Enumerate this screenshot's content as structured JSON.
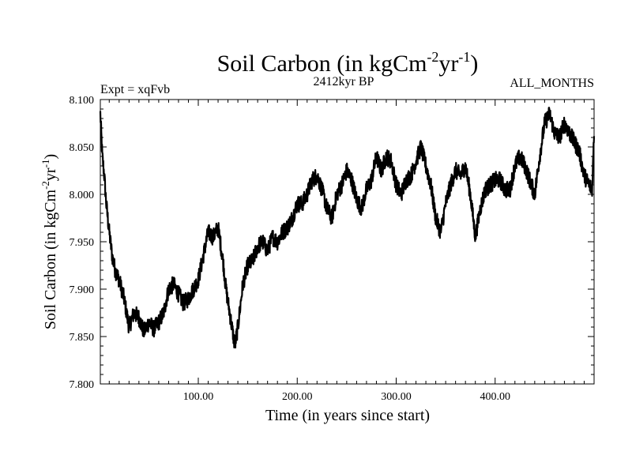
{
  "chart_data": {
    "type": "line",
    "title_main": "Soil Carbon (in kgCm",
    "title_sup1": "-2",
    "title_mid": "yr",
    "title_sup2": "-1",
    "title_end": ")",
    "subtitle_left": "Expt = xqFvb",
    "subtitle_center": "2412kyr BP",
    "subtitle_right": "ALL_MONTHS",
    "xlabel": "Time (in years since start)",
    "ylabel_main": "Soil Carbon (in kgCm",
    "ylabel_sup1": "-2",
    "ylabel_mid": "yr",
    "ylabel_sup2": "-1",
    "ylabel_end": ")",
    "xlim": [
      1,
      500
    ],
    "ylim": [
      7.8,
      8.1
    ],
    "x_ticks": [
      100,
      200,
      300,
      400
    ],
    "x_tick_labels": [
      "100.00",
      "200.00",
      "300.00",
      "400.00"
    ],
    "y_ticks": [
      7.8,
      7.85,
      7.9,
      7.95,
      8.0,
      8.05,
      8.1
    ],
    "y_tick_labels": [
      "7.800",
      "7.850",
      "7.900",
      "7.950",
      "8.000",
      "8.050",
      "8.100"
    ],
    "series": [
      {
        "name": "Soil Carbon",
        "color": "#000000",
        "x": [
          1,
          3,
          5,
          7,
          10,
          13,
          16,
          20,
          25,
          30,
          35,
          40,
          45,
          50,
          55,
          60,
          65,
          70,
          75,
          80,
          85,
          90,
          95,
          100,
          105,
          110,
          115,
          120,
          125,
          128,
          131,
          134,
          137,
          140,
          145,
          150,
          155,
          160,
          165,
          170,
          175,
          180,
          185,
          190,
          195,
          200,
          205,
          210,
          215,
          220,
          225,
          230,
          235,
          240,
          245,
          250,
          255,
          260,
          265,
          270,
          275,
          280,
          285,
          290,
          295,
          300,
          305,
          310,
          315,
          320,
          325,
          330,
          335,
          340,
          345,
          350,
          355,
          360,
          365,
          370,
          375,
          380,
          385,
          390,
          395,
          400,
          405,
          410,
          415,
          420,
          425,
          430,
          435,
          440,
          445,
          450,
          455,
          460,
          465,
          470,
          475,
          480,
          485,
          490,
          495,
          498,
          500
        ],
        "values": [
          8.085,
          8.04,
          8.02,
          7.99,
          7.96,
          7.935,
          7.92,
          7.91,
          7.89,
          7.86,
          7.875,
          7.87,
          7.855,
          7.865,
          7.858,
          7.865,
          7.875,
          7.9,
          7.905,
          7.895,
          7.885,
          7.89,
          7.9,
          7.91,
          7.935,
          7.96,
          7.955,
          7.965,
          7.93,
          7.9,
          7.88,
          7.86,
          7.84,
          7.86,
          7.905,
          7.925,
          7.93,
          7.945,
          7.95,
          7.94,
          7.955,
          7.95,
          7.96,
          7.965,
          7.975,
          7.99,
          7.99,
          8.0,
          8.015,
          8.02,
          8.005,
          7.985,
          7.975,
          8.0,
          8.01,
          8.025,
          8.015,
          7.995,
          7.985,
          8.005,
          8.015,
          8.04,
          8.025,
          8.04,
          8.035,
          8.01,
          8.0,
          8.015,
          8.02,
          8.035,
          8.05,
          8.03,
          8.01,
          7.975,
          7.96,
          7.99,
          8.01,
          8.025,
          8.02,
          8.03,
          8.0,
          7.955,
          7.985,
          8.005,
          8.01,
          8.015,
          8.015,
          8.005,
          8.005,
          8.03,
          8.04,
          8.03,
          8.015,
          8.0,
          8.04,
          8.075,
          8.085,
          8.065,
          8.06,
          8.075,
          8.065,
          8.055,
          8.045,
          8.02,
          8.01,
          8.005,
          8.065
        ]
      }
    ]
  }
}
